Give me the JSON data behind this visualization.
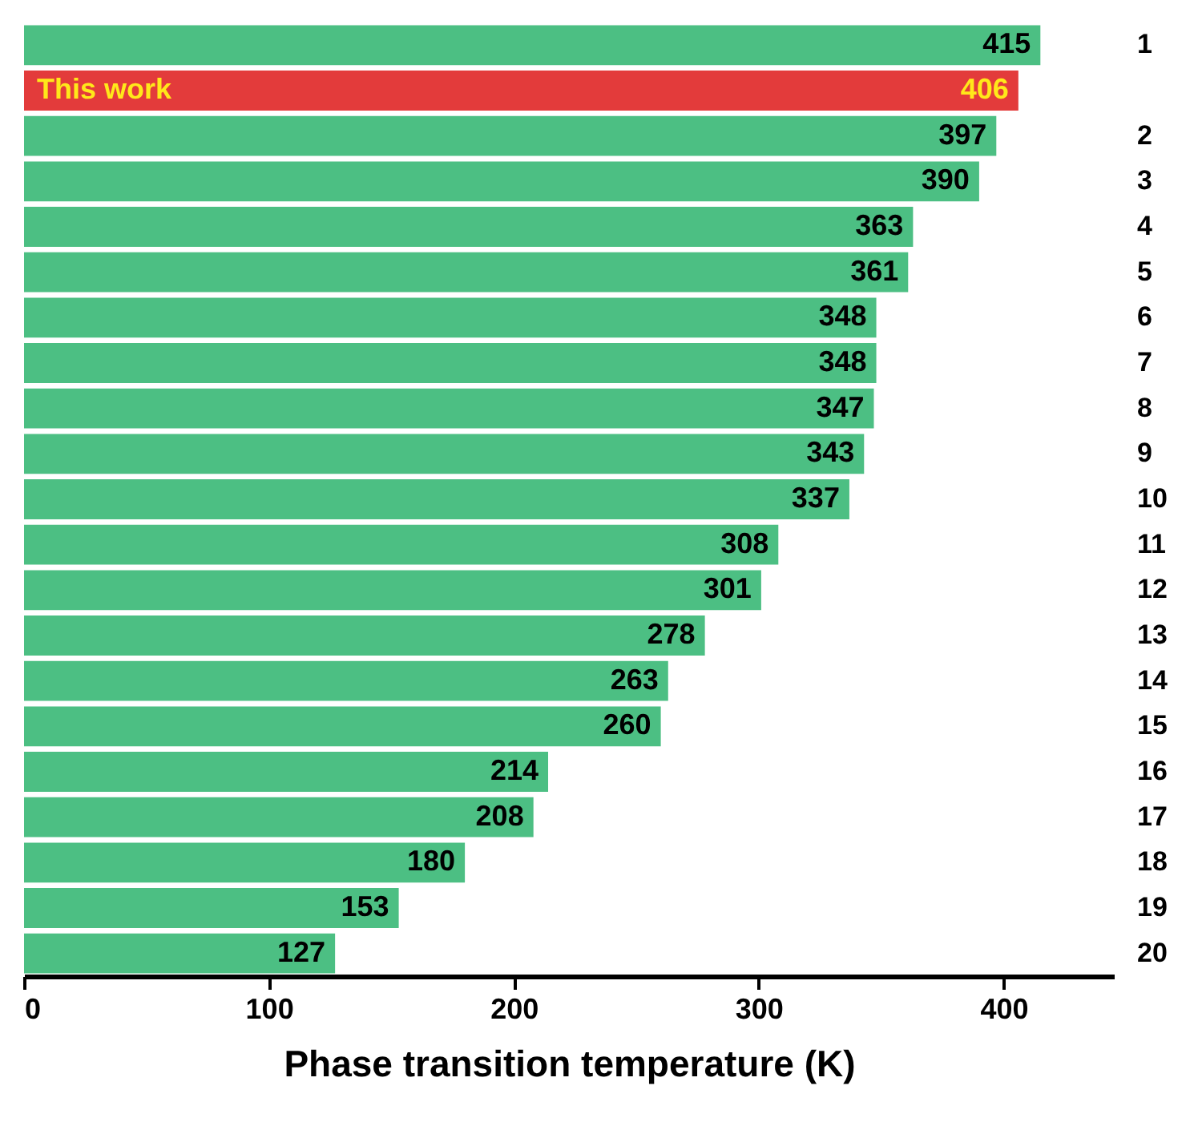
{
  "chart_data": {
    "type": "bar",
    "orientation": "horizontal",
    "xlabel": "Phase transition temperature (K)",
    "categories": [
      "1",
      null,
      "2",
      "3",
      "4",
      "5",
      "6",
      "7",
      "8",
      "9",
      "10",
      "11",
      "12",
      "13",
      "14",
      "15",
      "16",
      "17",
      "18",
      "19",
      "20"
    ],
    "values": [
      415,
      406,
      397,
      390,
      363,
      361,
      348,
      348,
      347,
      343,
      337,
      308,
      301,
      278,
      263,
      260,
      214,
      208,
      180,
      153,
      127
    ],
    "colors": [
      "#4cbf83",
      "#e33b3b",
      "#4cbf83",
      "#4cbf83",
      "#4cbf83",
      "#4cbf83",
      "#4cbf83",
      "#4cbf83",
      "#4cbf83",
      "#4cbf83",
      "#4cbf83",
      "#4cbf83",
      "#4cbf83",
      "#4cbf83",
      "#4cbf83",
      "#4cbf83",
      "#4cbf83",
      "#4cbf83",
      "#4cbf83",
      "#4cbf83",
      "#4cbf83"
    ],
    "annotations": [
      "This work"
    ],
    "xlim": [
      0,
      445
    ],
    "xticks": [
      0,
      100,
      200,
      300,
      400
    ],
    "data_labels": true,
    "grid": false
  }
}
